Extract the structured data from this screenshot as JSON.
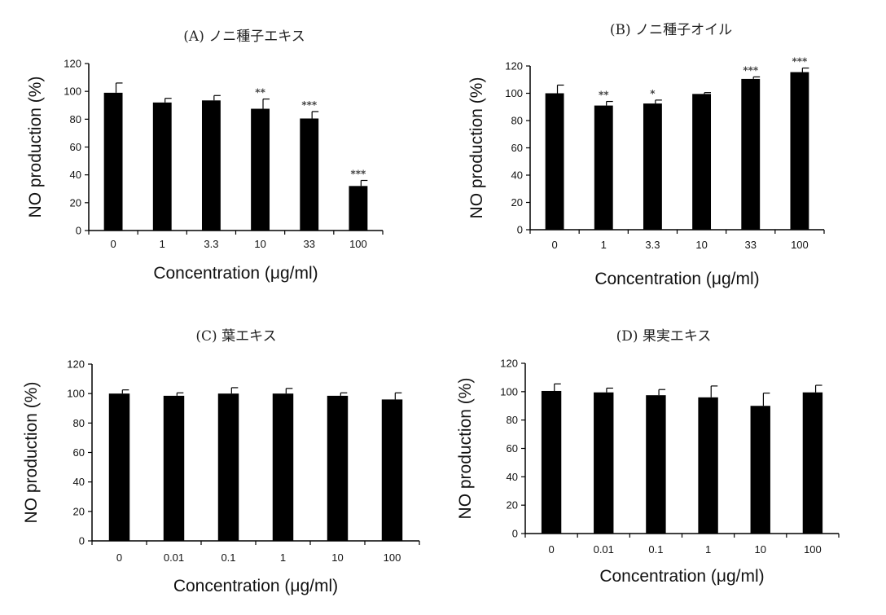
{
  "chart_data": [
    {
      "type": "bar",
      "title": "(A) ノニ種子エキス",
      "xlabel": "Concentration (μg/ml)",
      "ylabel": "NO production (%)",
      "categories": [
        "0",
        "1",
        "3.3",
        "10",
        "33",
        "100"
      ],
      "values": [
        99,
        92,
        93.5,
        87.5,
        80.5,
        32
      ],
      "errors": [
        7,
        3,
        3.5,
        7,
        5,
        4
      ],
      "significance": [
        "",
        "",
        "",
        "**",
        "***",
        "***"
      ],
      "ylim": [
        0,
        120
      ],
      "yticks": [
        0,
        20,
        40,
        60,
        80,
        100,
        120
      ],
      "bar_color": "#000000"
    },
    {
      "type": "bar",
      "title": "(B) ノニ種子オイル",
      "xlabel": "Concentration (μg/ml)",
      "ylabel": "NO production (%)",
      "categories": [
        "0",
        "1",
        "3.3",
        "10",
        "33",
        "100"
      ],
      "values": [
        100,
        91,
        92.5,
        99.5,
        110.5,
        115.5
      ],
      "errors": [
        6,
        3,
        2.5,
        1,
        1.5,
        3
      ],
      "significance": [
        "",
        "**",
        "*",
        "",
        "***",
        "***"
      ],
      "ylim": [
        0,
        120
      ],
      "yticks": [
        0,
        20,
        40,
        60,
        80,
        100,
        120
      ],
      "bar_color": "#000000"
    },
    {
      "type": "bar",
      "title": "(C) 葉エキス",
      "xlabel": "Concentration (μg/ml)",
      "ylabel": "NO production (%)",
      "categories": [
        "0",
        "0.01",
        "0.1",
        "1",
        "10",
        "100"
      ],
      "values": [
        100,
        98.5,
        100,
        100,
        98.5,
        96
      ],
      "errors": [
        2.5,
        2,
        4,
        3.5,
        2,
        4.5
      ],
      "significance": [
        "",
        "",
        "",
        "",
        "",
        ""
      ],
      "ylim": [
        0,
        120
      ],
      "yticks": [
        0,
        20,
        40,
        60,
        80,
        100,
        120
      ],
      "bar_color": "#000000"
    },
    {
      "type": "bar",
      "title": "(D) 果実エキス",
      "xlabel": "Concentration (μg/ml)",
      "ylabel": "NO production (%)",
      "categories": [
        "0",
        "0.01",
        "0.1",
        "1",
        "10",
        "100"
      ],
      "values": [
        100.5,
        99.5,
        97.5,
        96,
        90,
        99.5
      ],
      "errors": [
        5,
        3,
        4,
        8,
        9,
        5
      ],
      "significance": [
        "",
        "",
        "",
        "",
        "",
        ""
      ],
      "ylim": [
        0,
        120
      ],
      "yticks": [
        0,
        20,
        40,
        60,
        80,
        100,
        120
      ],
      "bar_color": "#000000"
    }
  ]
}
